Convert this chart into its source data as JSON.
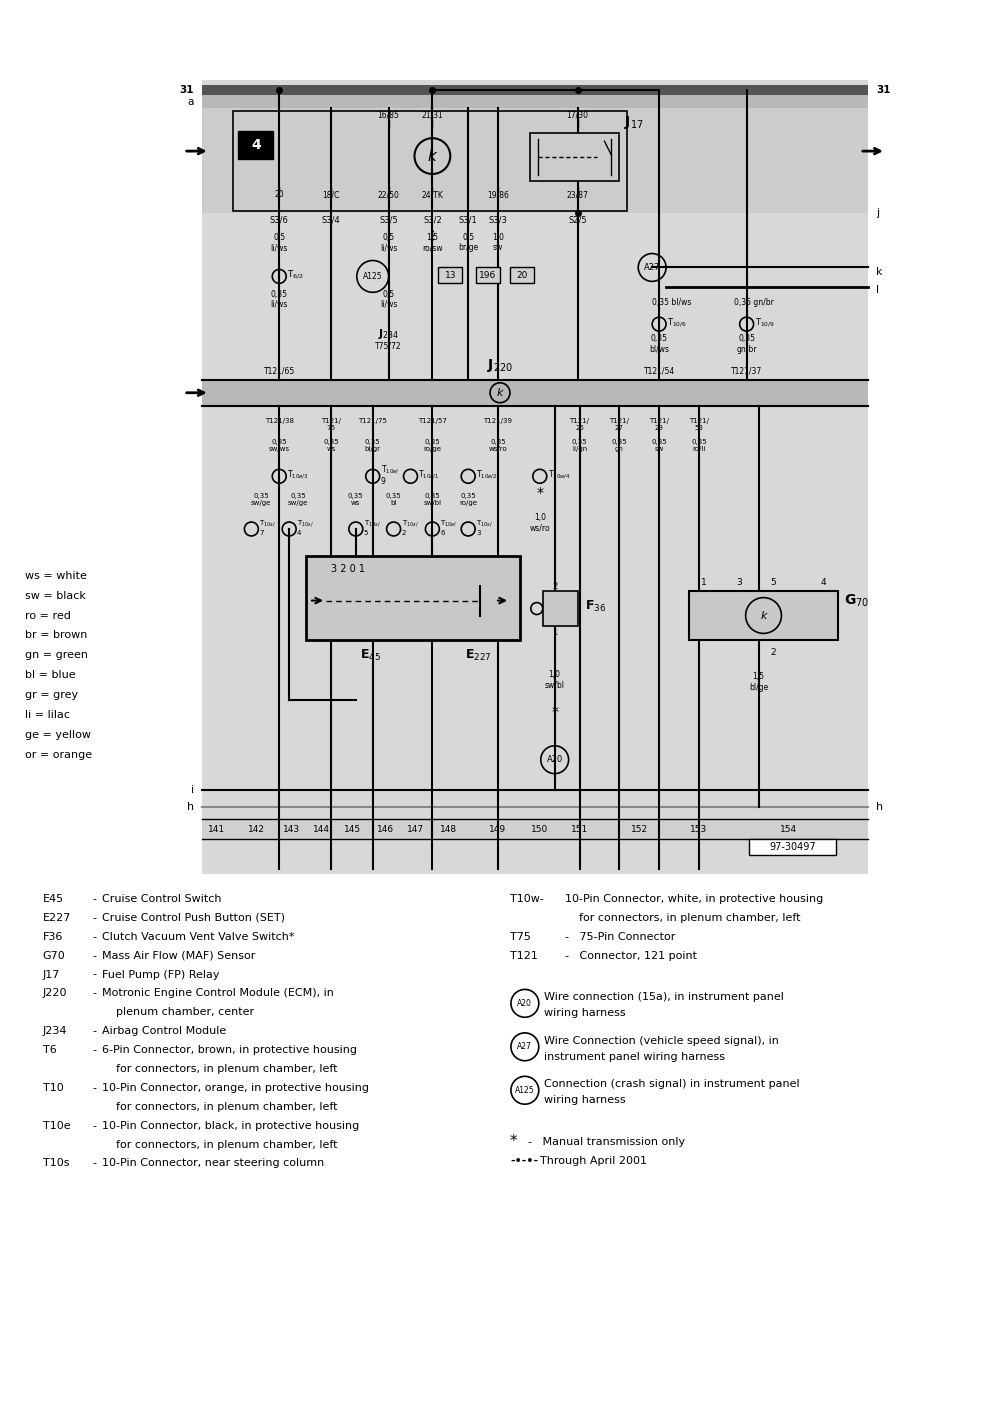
{
  "bg_color": "#ffffff",
  "diagram_bg": "#d0d0d0",
  "part_number": "97-30497",
  "legend_items": [
    [
      "ws",
      "white"
    ],
    [
      "sw",
      "black"
    ],
    [
      "ro",
      "red"
    ],
    [
      "br",
      "brown"
    ],
    [
      "gn",
      "green"
    ],
    [
      "bl",
      "blue"
    ],
    [
      "gr",
      "grey"
    ],
    [
      "li",
      "lilac"
    ],
    [
      "ge",
      "yellow"
    ],
    [
      "or",
      "orange"
    ]
  ]
}
